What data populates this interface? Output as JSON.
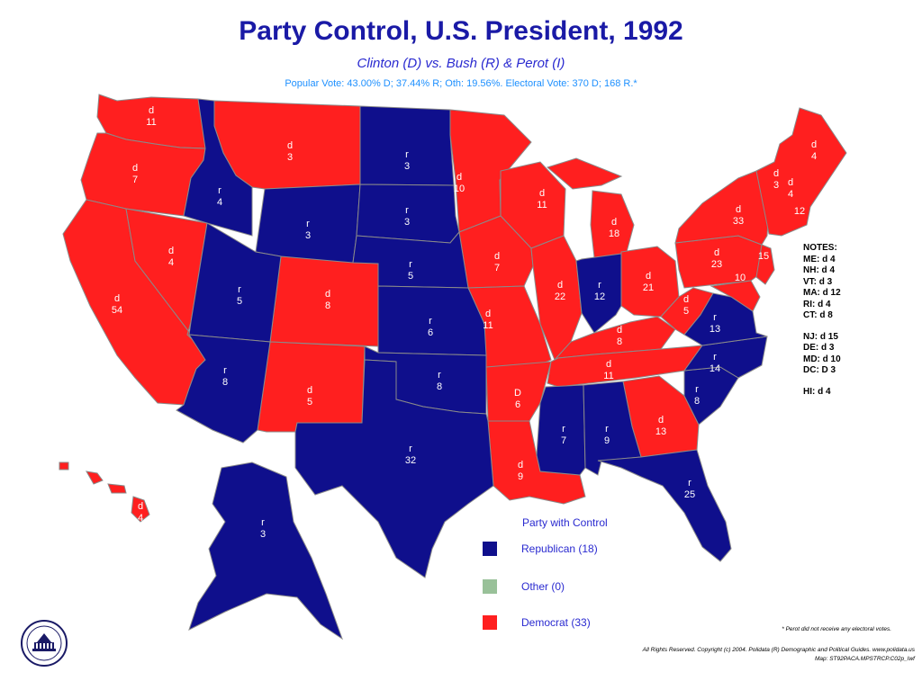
{
  "header": {
    "title": "Party Control, U.S. President, 1992",
    "subtitle": "Clinton (D) vs. Bush (R) & Perot (I)",
    "popular_vote": "Popular Vote: 43.00% D; 37.44% R; Oth: 19.56%. Electoral Vote: 370 D; 168 R.*"
  },
  "colors": {
    "democrat": "#ff1f1f",
    "republican": "#0f0f8c",
    "other": "#99c199",
    "accent": "#1a1aa6"
  },
  "states": [
    {
      "name": "Washington",
      "party": "D",
      "label": "d",
      "value": "11"
    },
    {
      "name": "Oregon",
      "party": "D",
      "label": "d",
      "value": "7"
    },
    {
      "name": "California",
      "party": "D",
      "label": "d",
      "value": "54"
    },
    {
      "name": "Nevada",
      "party": "D",
      "label": "d",
      "value": "4"
    },
    {
      "name": "Idaho",
      "party": "R",
      "label": "r",
      "value": "4"
    },
    {
      "name": "Montana",
      "party": "D",
      "label": "d",
      "value": "3"
    },
    {
      "name": "Wyoming",
      "party": "R",
      "label": "r",
      "value": "3"
    },
    {
      "name": "Utah",
      "party": "R",
      "label": "r",
      "value": "5"
    },
    {
      "name": "Arizona",
      "party": "R",
      "label": "r",
      "value": "8"
    },
    {
      "name": "Colorado",
      "party": "D",
      "label": "d",
      "value": "8"
    },
    {
      "name": "New Mexico",
      "party": "D",
      "label": "d",
      "value": "5"
    },
    {
      "name": "North Dakota",
      "party": "R",
      "label": "r",
      "value": "3"
    },
    {
      "name": "South Dakota",
      "party": "R",
      "label": "r",
      "value": "3"
    },
    {
      "name": "Nebraska",
      "party": "R",
      "label": "r",
      "value": "5"
    },
    {
      "name": "Kansas",
      "party": "R",
      "label": "r",
      "value": "6"
    },
    {
      "name": "Oklahoma",
      "party": "R",
      "label": "r",
      "value": "8"
    },
    {
      "name": "Texas",
      "party": "R",
      "label": "r",
      "value": "32"
    },
    {
      "name": "Minnesota",
      "party": "D",
      "label": "d",
      "value": "10"
    },
    {
      "name": "Iowa",
      "party": "D",
      "label": "d",
      "value": "7"
    },
    {
      "name": "Missouri",
      "party": "D",
      "label": "d",
      "value": "11"
    },
    {
      "name": "Arkansas",
      "party": "D",
      "label": "D",
      "value": "6"
    },
    {
      "name": "Louisiana",
      "party": "D",
      "label": "d",
      "value": "9"
    },
    {
      "name": "Wisconsin",
      "party": "D",
      "label": "d",
      "value": "11"
    },
    {
      "name": "Illinois",
      "party": "D",
      "label": "d",
      "value": "22"
    },
    {
      "name": "Michigan",
      "party": "D",
      "label": "d",
      "value": "18"
    },
    {
      "name": "Indiana",
      "party": "R",
      "label": "r",
      "value": "12"
    },
    {
      "name": "Ohio",
      "party": "D",
      "label": "d",
      "value": "21"
    },
    {
      "name": "Kentucky",
      "party": "D",
      "label": "d",
      "value": "8"
    },
    {
      "name": "Tennessee",
      "party": "D",
      "label": "d",
      "value": "11"
    },
    {
      "name": "Mississippi",
      "party": "R",
      "label": "r",
      "value": "7"
    },
    {
      "name": "Alabama",
      "party": "R",
      "label": "r",
      "value": "9"
    },
    {
      "name": "Georgia",
      "party": "D",
      "label": "d",
      "value": "13"
    },
    {
      "name": "Florida",
      "party": "R",
      "label": "r",
      "value": "25"
    },
    {
      "name": "South Carolina",
      "party": "R",
      "label": "r",
      "value": "8"
    },
    {
      "name": "North Carolina",
      "party": "R",
      "label": "r",
      "value": "14"
    },
    {
      "name": "Virginia",
      "party": "R",
      "label": "r",
      "value": "13"
    },
    {
      "name": "West Virginia",
      "party": "D",
      "label": "d",
      "value": "5"
    },
    {
      "name": "Pennsylvania",
      "party": "D",
      "label": "d",
      "value": "23"
    },
    {
      "name": "New York",
      "party": "D",
      "label": "d",
      "value": "33"
    },
    {
      "name": "Maryland",
      "party": "D",
      "label": "",
      "value": "10"
    },
    {
      "name": "New Jersey",
      "party": "D",
      "label": "",
      "value": "15"
    },
    {
      "name": "Vermont",
      "party": "D",
      "label": "d",
      "value": "3"
    },
    {
      "name": "New Hampshire",
      "party": "D",
      "label": "d",
      "value": "4"
    },
    {
      "name": "Maine",
      "party": "D",
      "label": "d",
      "value": "4"
    },
    {
      "name": "Massachusetts",
      "party": "D",
      "label": "",
      "value": "12"
    },
    {
      "name": "Alaska",
      "party": "R",
      "label": "r",
      "value": "3"
    },
    {
      "name": "Hawaii",
      "party": "D",
      "label": "d",
      "value": "4"
    }
  ],
  "notes": {
    "heading": "NOTES:",
    "group1": [
      "ME: d 4",
      "NH: d 4",
      "VT: d 3",
      "MA: d 12",
      "RI: d 4",
      "CT: d 8"
    ],
    "group2": [
      "NJ: d 15",
      "DE: d 3",
      "MD: d 10",
      "DC: D 3"
    ],
    "group3": [
      "HI: d 4"
    ]
  },
  "legend": {
    "title": "Party with Control",
    "items": [
      {
        "label": "Republican (18)",
        "color": "#0f0f8c"
      },
      {
        "label": "Other (0)",
        "color": "#99c199"
      },
      {
        "label": "Democrat (33)",
        "color": "#ff1f1f"
      }
    ]
  },
  "footer": {
    "perot_note": "* Perot did not receive any electoral votes.",
    "copyright": "All Rights Reserved. Copyright (c) 2004. Polidata (R) Demographic and Political Guides. www.polidata.us",
    "map_id": "Map: ST92PACA.MPSTRCP.C02p_Iwf"
  }
}
